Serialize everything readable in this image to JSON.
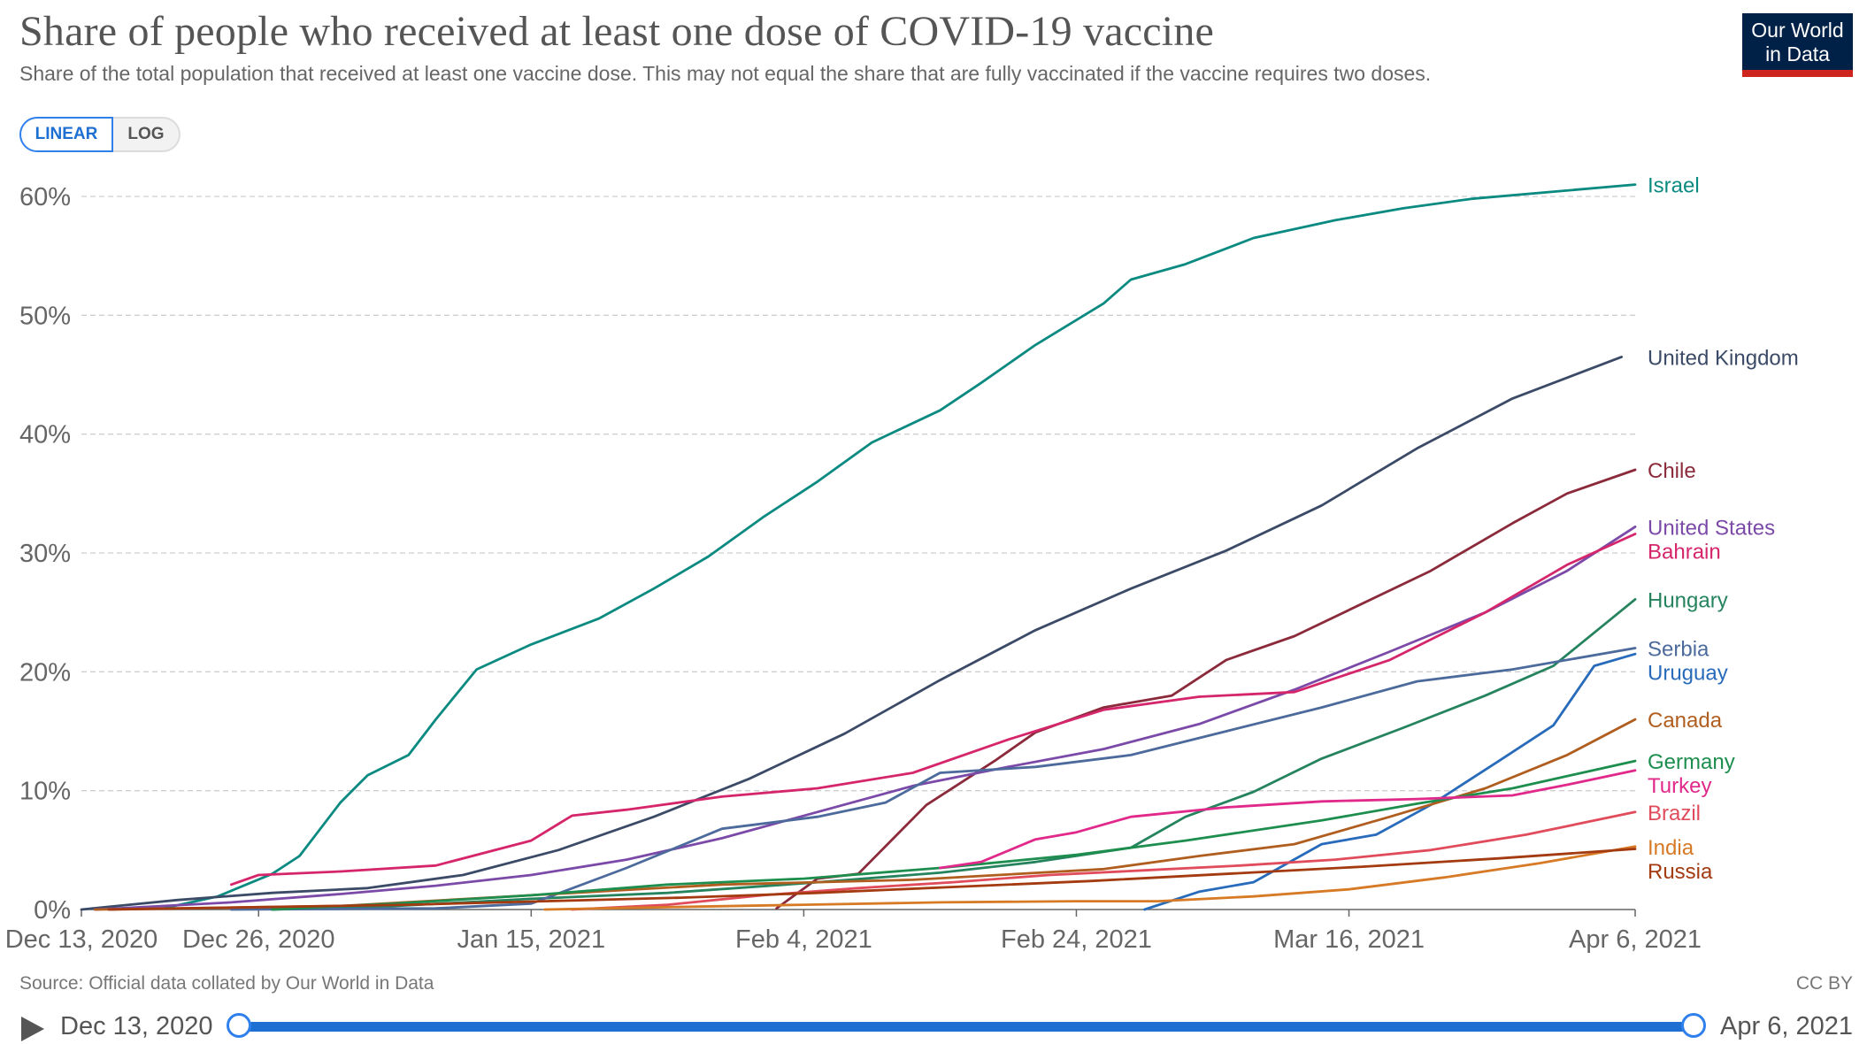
{
  "header": {
    "title": "Share of people who received at least one dose of COVID-19 vaccine",
    "subtitle": "Share of the total population that received at least one vaccine dose. This may not equal the share that are fully vaccinated if the vaccine requires two doses."
  },
  "logo": {
    "line1": "Our World",
    "line2": "in Data",
    "bg_color": "#002147",
    "accent_color": "#ce261e"
  },
  "scale_toggle": {
    "linear_label": "LINEAR",
    "log_label": "LOG",
    "selected": "LINEAR"
  },
  "footer": {
    "source": "Source: Official data collated by Our World in Data",
    "license": "CC BY"
  },
  "timeline": {
    "start_label": "Dec 13, 2020",
    "end_label": "Apr 6, 2021"
  },
  "chart_data": {
    "type": "line",
    "title": "Share of people who received at least one dose of COVID-19 vaccine",
    "xlabel": "",
    "ylabel": "",
    "ylim": [
      0,
      60
    ],
    "y_ticks": [
      0,
      10,
      20,
      30,
      40,
      50,
      60
    ],
    "y_tick_labels": [
      "0%",
      "10%",
      "20%",
      "30%",
      "40%",
      "50%",
      "60%"
    ],
    "x_domain": [
      "2020-12-13",
      "2021-04-06"
    ],
    "x_ticks": [
      "2020-12-13",
      "2020-12-26",
      "2021-01-15",
      "2021-02-04",
      "2021-02-24",
      "2021-03-16",
      "2021-04-06"
    ],
    "x_tick_labels": [
      "Dec 13, 2020",
      "Dec 26, 2020",
      "Jan 15, 2021",
      "Feb 4, 2021",
      "Feb 24, 2021",
      "Mar 16, 2021",
      "Apr 6, 2021"
    ],
    "grid": "horizontal dashed",
    "legend": "labels at line ends (right)",
    "series": [
      {
        "name": "Israel",
        "color": "#0a8a80",
        "points": [
          [
            "2020-12-19",
            0.1
          ],
          [
            "2020-12-23",
            1.1
          ],
          [
            "2020-12-27",
            3.0
          ],
          [
            "2020-12-29",
            4.5
          ],
          [
            "2021-01-01",
            9.0
          ],
          [
            "2021-01-03",
            11.3
          ],
          [
            "2021-01-06",
            13.0
          ],
          [
            "2021-01-08",
            16.0
          ],
          [
            "2021-01-11",
            20.2
          ],
          [
            "2021-01-15",
            22.3
          ],
          [
            "2021-01-20",
            24.5
          ],
          [
            "2021-01-24",
            27.0
          ],
          [
            "2021-01-28",
            29.7
          ],
          [
            "2021-02-01",
            33.0
          ],
          [
            "2021-02-05",
            36.0
          ],
          [
            "2021-02-09",
            39.3
          ],
          [
            "2021-02-14",
            42.0
          ],
          [
            "2021-02-17",
            44.3
          ],
          [
            "2021-02-21",
            47.5
          ],
          [
            "2021-02-26",
            51.0
          ],
          [
            "2021-02-28",
            53.0
          ],
          [
            "2021-03-04",
            54.3
          ],
          [
            "2021-03-09",
            56.5
          ],
          [
            "2021-03-15",
            58.0
          ],
          [
            "2021-03-20",
            59.0
          ],
          [
            "2021-03-25",
            59.8
          ],
          [
            "2021-04-06",
            61.0
          ]
        ]
      },
      {
        "name": "United Kingdom",
        "color": "#3b4a66",
        "points": [
          [
            "2020-12-13",
            0.0
          ],
          [
            "2020-12-20",
            0.8
          ],
          [
            "2020-12-27",
            1.4
          ],
          [
            "2021-01-03",
            1.8
          ],
          [
            "2021-01-10",
            2.9
          ],
          [
            "2021-01-17",
            5.0
          ],
          [
            "2021-01-24",
            7.8
          ],
          [
            "2021-01-31",
            11.0
          ],
          [
            "2021-02-07",
            14.8
          ],
          [
            "2021-02-14",
            19.3
          ],
          [
            "2021-02-21",
            23.5
          ],
          [
            "2021-02-28",
            27.0
          ],
          [
            "2021-03-07",
            30.2
          ],
          [
            "2021-03-14",
            34.0
          ],
          [
            "2021-03-21",
            38.8
          ],
          [
            "2021-03-28",
            43.0
          ],
          [
            "2021-04-05",
            46.5
          ]
        ]
      },
      {
        "name": "Chile",
        "color": "#8b2a3a",
        "points": [
          [
            "2021-02-02",
            0.1
          ],
          [
            "2021-02-05",
            2.6
          ],
          [
            "2021-02-08",
            3.0
          ],
          [
            "2021-02-13",
            8.8
          ],
          [
            "2021-02-18",
            12.5
          ],
          [
            "2021-02-21",
            14.9
          ],
          [
            "2021-02-26",
            17.0
          ],
          [
            "2021-03-03",
            18.0
          ],
          [
            "2021-03-07",
            21.0
          ],
          [
            "2021-03-12",
            23.0
          ],
          [
            "2021-03-16",
            25.2
          ],
          [
            "2021-03-22",
            28.5
          ],
          [
            "2021-03-28",
            32.5
          ],
          [
            "2021-04-01",
            35.0
          ],
          [
            "2021-04-06",
            37.0
          ]
        ]
      },
      {
        "name": "United States",
        "color": "#7b4aa8",
        "points": [
          [
            "2020-12-14",
            0.0
          ],
          [
            "2020-12-24",
            0.6
          ],
          [
            "2021-01-01",
            1.3
          ],
          [
            "2021-01-08",
            2.0
          ],
          [
            "2021-01-15",
            2.9
          ],
          [
            "2021-01-22",
            4.2
          ],
          [
            "2021-01-29",
            6.0
          ],
          [
            "2021-02-05",
            8.2
          ],
          [
            "2021-02-12",
            10.4
          ],
          [
            "2021-02-19",
            12.0
          ],
          [
            "2021-02-26",
            13.5
          ],
          [
            "2021-03-05",
            15.6
          ],
          [
            "2021-03-12",
            18.5
          ],
          [
            "2021-03-19",
            21.7
          ],
          [
            "2021-03-26",
            25.0
          ],
          [
            "2021-04-01",
            28.5
          ],
          [
            "2021-04-06",
            32.2
          ]
        ]
      },
      {
        "name": "Bahrain",
        "color": "#d6266b",
        "points": [
          [
            "2020-12-24",
            2.1
          ],
          [
            "2020-12-26",
            2.9
          ],
          [
            "2021-01-01",
            3.2
          ],
          [
            "2021-01-08",
            3.7
          ],
          [
            "2021-01-15",
            5.8
          ],
          [
            "2021-01-18",
            7.9
          ],
          [
            "2021-01-22",
            8.4
          ],
          [
            "2021-01-29",
            9.5
          ],
          [
            "2021-02-05",
            10.2
          ],
          [
            "2021-02-12",
            11.5
          ],
          [
            "2021-02-19",
            14.3
          ],
          [
            "2021-02-26",
            16.8
          ],
          [
            "2021-03-05",
            17.9
          ],
          [
            "2021-03-12",
            18.3
          ],
          [
            "2021-03-19",
            21.0
          ],
          [
            "2021-03-26",
            25.0
          ],
          [
            "2021-04-01",
            29.0
          ],
          [
            "2021-04-06",
            31.6
          ]
        ]
      },
      {
        "name": "Hungary",
        "color": "#25835e",
        "points": [
          [
            "2020-12-27",
            0.0
          ],
          [
            "2021-01-05",
            0.3
          ],
          [
            "2021-01-15",
            0.9
          ],
          [
            "2021-01-25",
            1.4
          ],
          [
            "2021-02-04",
            2.2
          ],
          [
            "2021-02-14",
            3.1
          ],
          [
            "2021-02-21",
            4.0
          ],
          [
            "2021-02-28",
            5.2
          ],
          [
            "2021-03-04",
            7.8
          ],
          [
            "2021-03-09",
            9.9
          ],
          [
            "2021-03-14",
            12.7
          ],
          [
            "2021-03-20",
            15.3
          ],
          [
            "2021-03-26",
            18.0
          ],
          [
            "2021-03-31",
            20.5
          ],
          [
            "2021-04-06",
            26.1
          ]
        ]
      },
      {
        "name": "Serbia",
        "color": "#4c6a9c",
        "points": [
          [
            "2020-12-24",
            0.0
          ],
          [
            "2021-01-08",
            0.1
          ],
          [
            "2021-01-15",
            0.5
          ],
          [
            "2021-01-22",
            3.5
          ],
          [
            "2021-01-29",
            6.8
          ],
          [
            "2021-02-05",
            7.8
          ],
          [
            "2021-02-10",
            9.0
          ],
          [
            "2021-02-14",
            11.5
          ],
          [
            "2021-02-21",
            12.0
          ],
          [
            "2021-02-28",
            13.0
          ],
          [
            "2021-03-07",
            15.0
          ],
          [
            "2021-03-14",
            17.0
          ],
          [
            "2021-03-21",
            19.2
          ],
          [
            "2021-03-28",
            20.2
          ],
          [
            "2021-04-06",
            22.0
          ]
        ]
      },
      {
        "name": "Uruguay",
        "color": "#286bbb",
        "points": [
          [
            "2021-03-01",
            0.0
          ],
          [
            "2021-03-05",
            1.5
          ],
          [
            "2021-03-09",
            2.3
          ],
          [
            "2021-03-14",
            5.5
          ],
          [
            "2021-03-18",
            6.3
          ],
          [
            "2021-03-22",
            8.8
          ],
          [
            "2021-03-27",
            12.5
          ],
          [
            "2021-03-31",
            15.5
          ],
          [
            "2021-04-03",
            20.5
          ],
          [
            "2021-04-06",
            21.5
          ]
        ]
      },
      {
        "name": "Canada",
        "color": "#b05e1f",
        "points": [
          [
            "2020-12-14",
            0.0
          ],
          [
            "2021-01-01",
            0.3
          ],
          [
            "2021-01-15",
            1.2
          ],
          [
            "2021-01-29",
            2.1
          ],
          [
            "2021-02-12",
            2.5
          ],
          [
            "2021-02-26",
            3.4
          ],
          [
            "2021-03-05",
            4.5
          ],
          [
            "2021-03-12",
            5.5
          ],
          [
            "2021-03-19",
            7.8
          ],
          [
            "2021-03-26",
            10.2
          ],
          [
            "2021-04-01",
            13.0
          ],
          [
            "2021-04-06",
            16.0
          ]
        ]
      },
      {
        "name": "Germany",
        "color": "#1d8e4e",
        "points": [
          [
            "2020-12-27",
            0.0
          ],
          [
            "2021-01-05",
            0.5
          ],
          [
            "2021-01-15",
            1.2
          ],
          [
            "2021-01-25",
            2.1
          ],
          [
            "2021-02-04",
            2.6
          ],
          [
            "2021-02-14",
            3.5
          ],
          [
            "2021-02-24",
            4.6
          ],
          [
            "2021-03-04",
            5.8
          ],
          [
            "2021-03-14",
            7.5
          ],
          [
            "2021-03-21",
            8.9
          ],
          [
            "2021-03-28",
            10.2
          ],
          [
            "2021-04-06",
            12.5
          ]
        ]
      },
      {
        "name": "Turkey",
        "color": "#e0298a",
        "points": [
          [
            "2021-02-14",
            3.5
          ],
          [
            "2021-02-17",
            4.0
          ],
          [
            "2021-02-21",
            5.9
          ],
          [
            "2021-02-24",
            6.5
          ],
          [
            "2021-02-28",
            7.8
          ],
          [
            "2021-03-07",
            8.6
          ],
          [
            "2021-03-14",
            9.1
          ],
          [
            "2021-03-21",
            9.3
          ],
          [
            "2021-03-28",
            9.6
          ],
          [
            "2021-04-01",
            10.5
          ],
          [
            "2021-04-06",
            11.7
          ]
        ]
      },
      {
        "name": "Brazil",
        "color": "#e04c5c",
        "points": [
          [
            "2021-01-18",
            0.0
          ],
          [
            "2021-01-25",
            0.4
          ],
          [
            "2021-02-01",
            1.2
          ],
          [
            "2021-02-08",
            1.8
          ],
          [
            "2021-02-15",
            2.3
          ],
          [
            "2021-02-22",
            2.9
          ],
          [
            "2021-03-01",
            3.3
          ],
          [
            "2021-03-08",
            3.7
          ],
          [
            "2021-03-15",
            4.2
          ],
          [
            "2021-03-22",
            5.0
          ],
          [
            "2021-03-29",
            6.3
          ],
          [
            "2021-04-06",
            8.2
          ]
        ]
      },
      {
        "name": "India",
        "color": "#d77a26",
        "points": [
          [
            "2021-01-16",
            0.0
          ],
          [
            "2021-01-25",
            0.2
          ],
          [
            "2021-02-04",
            0.4
          ],
          [
            "2021-02-14",
            0.6
          ],
          [
            "2021-02-24",
            0.7
          ],
          [
            "2021-03-02",
            0.7
          ],
          [
            "2021-03-09",
            1.1
          ],
          [
            "2021-03-16",
            1.7
          ],
          [
            "2021-03-23",
            2.7
          ],
          [
            "2021-03-30",
            3.9
          ],
          [
            "2021-04-06",
            5.3
          ]
        ]
      },
      {
        "name": "Russia",
        "color": "#a33a10",
        "points": [
          [
            "2020-12-15",
            0.0
          ],
          [
            "2020-12-26",
            0.2
          ],
          [
            "2021-01-06",
            0.4
          ],
          [
            "2021-01-16",
            0.7
          ],
          [
            "2021-01-26",
            1.0
          ],
          [
            "2021-02-05",
            1.4
          ],
          [
            "2021-02-15",
            1.9
          ],
          [
            "2021-02-25",
            2.4
          ],
          [
            "2021-03-07",
            3.0
          ],
          [
            "2021-03-17",
            3.6
          ],
          [
            "2021-03-27",
            4.3
          ],
          [
            "2021-04-06",
            5.1
          ]
        ]
      }
    ]
  }
}
